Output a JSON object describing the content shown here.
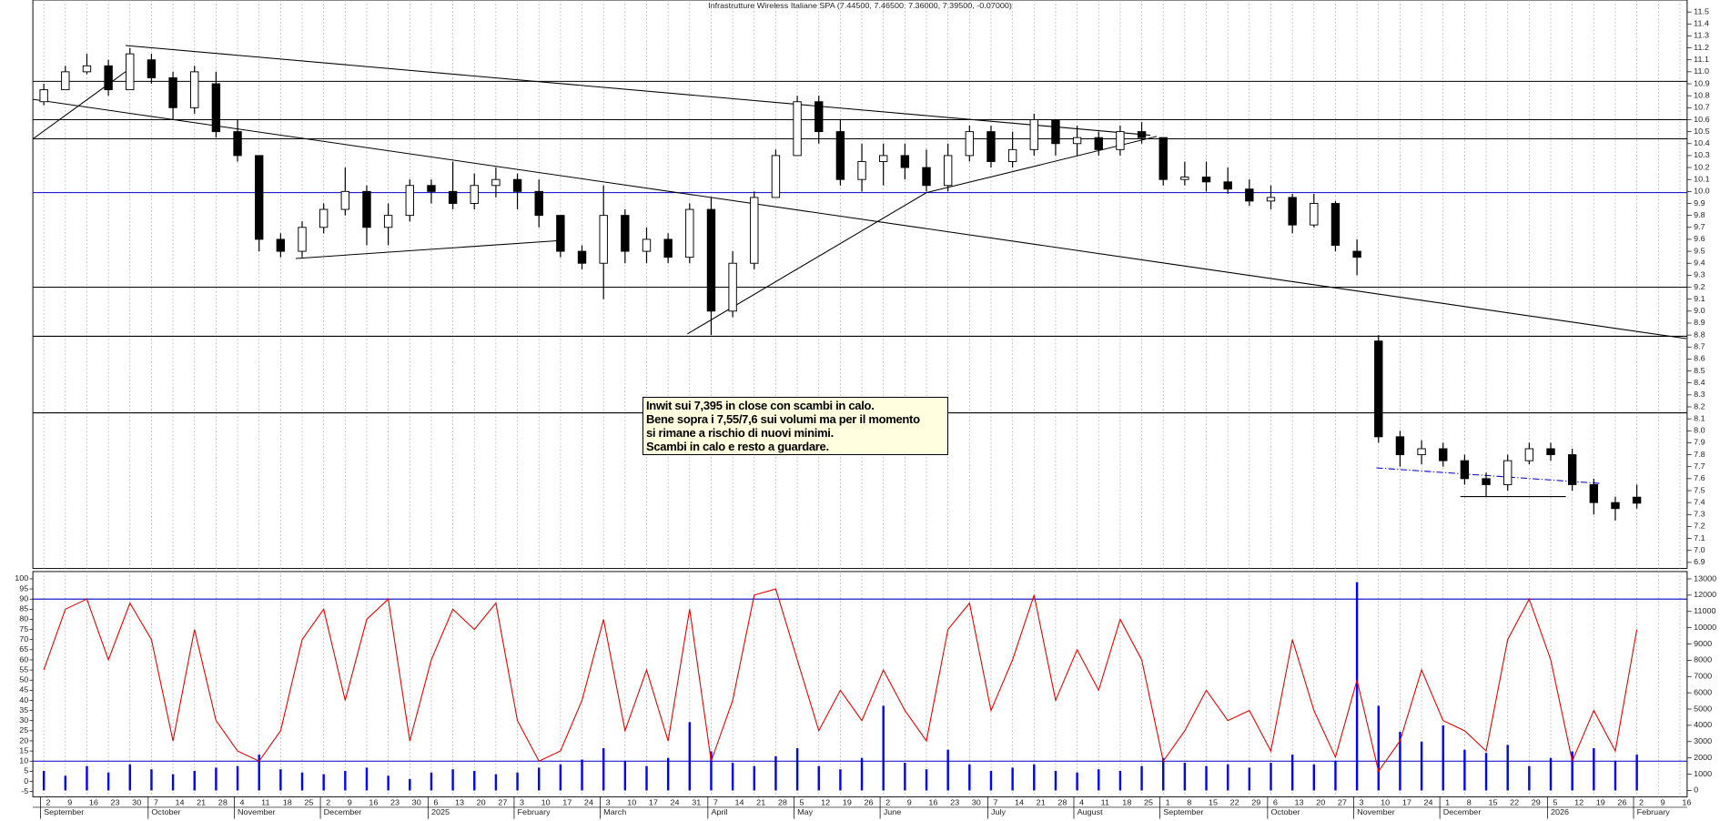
{
  "chart_data": {
    "type": "candlestick",
    "title": "Infrastrutture Wireless Italiane SPA (7.44500, 7.46500, 7.36000, 7.39500, -0.07000)",
    "annotation": [
      "Inwit sui 7,395 in close con scambi in calo.",
      "Bene sopra i 7,55/7,6 sui volumi ma per il momento",
      "si rimane a rischio di nuovi minimi.",
      "Scambi in calo e resto a guardare."
    ],
    "categories": [
      "2",
      "9",
      "16",
      "23",
      "30",
      "7",
      "14",
      "21",
      "28",
      "4",
      "11",
      "18",
      "25",
      "2",
      "9",
      "16",
      "23",
      "30",
      "6",
      "13",
      "20",
      "27",
      "3",
      "10",
      "17",
      "24",
      "3",
      "10",
      "17",
      "24",
      "31",
      "7",
      "14",
      "21",
      "28",
      "5",
      "12",
      "19",
      "26",
      "2",
      "9",
      "16",
      "23",
      "30",
      "7",
      "14",
      "21",
      "28",
      "4",
      "11",
      "18",
      "25",
      "1",
      "8",
      "15",
      "22",
      "29",
      "6",
      "13",
      "20",
      "27",
      "3",
      "10",
      "17",
      "24",
      "1",
      "8",
      "15",
      "22",
      "29",
      "5",
      "12",
      "19",
      "26",
      "2",
      "9",
      "16"
    ],
    "month_labels": [
      "September",
      null,
      null,
      null,
      null,
      "October",
      null,
      null,
      null,
      "November",
      null,
      null,
      null,
      "December",
      null,
      null,
      null,
      null,
      "2025",
      null,
      null,
      null,
      "February",
      null,
      null,
      null,
      "March",
      null,
      null,
      null,
      null,
      "April",
      null,
      null,
      null,
      "May",
      null,
      null,
      null,
      "June",
      null,
      null,
      null,
      null,
      "July",
      null,
      null,
      null,
      "August",
      null,
      null,
      null,
      "September",
      null,
      null,
      null,
      null,
      "October",
      null,
      null,
      null,
      "November",
      null,
      null,
      null,
      "December",
      null,
      null,
      null,
      null,
      "2026",
      null,
      null,
      null,
      "February",
      null,
      null
    ],
    "open": [
      10.75,
      10.85,
      11.0,
      11.05,
      10.85,
      11.1,
      10.95,
      10.7,
      10.9,
      10.5,
      10.3,
      9.6,
      9.5,
      9.7,
      9.85,
      10.0,
      9.7,
      9.8,
      10.05,
      10.0,
      9.9,
      10.05,
      10.1,
      10.0,
      9.8,
      9.5,
      9.4,
      9.8,
      9.5,
      9.6,
      9.45,
      9.85,
      9.0,
      9.4,
      9.95,
      10.3,
      10.75,
      10.5,
      10.1,
      10.25,
      10.3,
      10.2,
      10.05,
      10.3,
      10.5,
      10.25,
      10.35,
      10.6,
      10.4,
      10.45,
      10.35,
      10.5,
      10.45,
      10.1,
      10.12,
      10.08,
      10.02,
      9.92,
      9.95,
      9.72,
      9.9,
      9.5,
      8.75,
      7.95,
      7.8,
      7.85,
      7.75,
      7.6,
      7.55,
      7.75,
      7.85,
      7.8,
      7.55,
      7.4,
      7.445,
      null,
      null
    ],
    "high": [
      10.9,
      11.05,
      11.15,
      11.1,
      11.2,
      11.15,
      11.0,
      11.05,
      11.0,
      10.6,
      10.3,
      9.65,
      9.75,
      9.9,
      10.2,
      10.05,
      9.9,
      10.1,
      10.1,
      10.25,
      10.15,
      10.2,
      10.15,
      10.1,
      9.8,
      9.55,
      10.05,
      9.85,
      9.7,
      9.65,
      9.9,
      9.95,
      9.5,
      10.0,
      10.35,
      10.8,
      10.8,
      10.6,
      10.4,
      10.4,
      10.4,
      10.35,
      10.4,
      10.55,
      10.55,
      10.5,
      10.65,
      10.6,
      10.55,
      10.5,
      10.55,
      10.58,
      10.45,
      10.25,
      10.25,
      10.2,
      10.1,
      10.05,
      9.98,
      9.98,
      9.92,
      9.6,
      8.8,
      8.0,
      7.92,
      7.9,
      7.8,
      7.65,
      7.8,
      7.9,
      7.9,
      7.85,
      7.6,
      7.45,
      7.55,
      null,
      null
    ],
    "low": [
      10.72,
      10.85,
      10.98,
      10.8,
      10.85,
      10.9,
      10.6,
      10.65,
      10.45,
      10.25,
      9.5,
      9.45,
      9.45,
      9.65,
      9.8,
      9.55,
      9.55,
      9.75,
      9.9,
      9.85,
      9.85,
      9.95,
      9.85,
      9.7,
      9.45,
      9.35,
      9.1,
      9.4,
      9.4,
      9.4,
      9.4,
      8.8,
      8.95,
      9.35,
      9.95,
      10.3,
      10.4,
      10.05,
      10.0,
      10.05,
      10.1,
      10.0,
      10.0,
      10.25,
      10.2,
      10.2,
      10.3,
      10.3,
      10.3,
      10.3,
      10.3,
      10.4,
      10.05,
      10.05,
      10.0,
      9.98,
      9.88,
      9.85,
      9.65,
      9.7,
      9.5,
      9.3,
      7.9,
      7.7,
      7.72,
      7.7,
      7.55,
      7.45,
      7.5,
      7.72,
      7.75,
      7.5,
      7.3,
      7.25,
      7.35,
      null,
      null
    ],
    "close": [
      10.85,
      11.0,
      11.05,
      10.85,
      11.15,
      10.95,
      10.7,
      11.0,
      10.5,
      10.3,
      9.6,
      9.5,
      9.7,
      9.85,
      10.0,
      9.7,
      9.8,
      10.05,
      10.0,
      9.9,
      10.05,
      10.1,
      10.0,
      9.8,
      9.5,
      9.4,
      9.8,
      9.5,
      9.6,
      9.45,
      9.85,
      9.0,
      9.4,
      9.95,
      10.3,
      10.75,
      10.5,
      10.1,
      10.25,
      10.3,
      10.2,
      10.05,
      10.3,
      10.5,
      10.25,
      10.35,
      10.6,
      10.4,
      10.45,
      10.35,
      10.5,
      10.45,
      10.1,
      10.12,
      10.08,
      10.02,
      9.92,
      9.95,
      9.72,
      9.9,
      9.55,
      9.45,
      7.95,
      7.8,
      7.85,
      7.75,
      7.6,
      7.55,
      7.75,
      7.85,
      7.8,
      7.55,
      7.4,
      7.35,
      7.395,
      null,
      null
    ],
    "ylim": [
      6.85,
      11.6
    ],
    "yticks": [
      6.9,
      {
        "value": 7,
        "label": "7.0"
      },
      7.1,
      7.2,
      7.3,
      7.4,
      7.5,
      7.6,
      7.7,
      7.8,
      7.9,
      {
        "value": 8,
        "label": "8.0"
      },
      8.1,
      8.2,
      8.3,
      8.4,
      8.5,
      8.6,
      8.7,
      8.8,
      8.9,
      {
        "value": 9,
        "label": "9.0"
      },
      9.1,
      9.2,
      9.3,
      9.4,
      9.5,
      9.6,
      9.7,
      9.8,
      9.9,
      {
        "value": 10,
        "label": "10.0"
      },
      10.1,
      10.2,
      10.3,
      10.4,
      10.5,
      10.6,
      10.7,
      10.8,
      10.9,
      {
        "value": 11,
        "label": "11.0"
      },
      11.1,
      11.2,
      11.3,
      11.4,
      11.5
    ],
    "hlines": [
      {
        "value": 10.92,
        "color": "#000000"
      },
      {
        "value": 10.6,
        "color": "#000000"
      },
      {
        "value": 10.44,
        "color": "#000000"
      },
      {
        "value": 9.99,
        "color": "#0000cc"
      },
      {
        "value": 9.2,
        "color": "#000000"
      },
      {
        "value": 8.79,
        "color": "#000000"
      },
      {
        "value": 8.15,
        "color": "#000000"
      }
    ],
    "trendlines": [
      {
        "x": [
          -0.5,
          4.1
        ],
        "y": [
          10.44,
          11.04
        ],
        "color": "#000000"
      },
      {
        "x": [
          3.8,
          51.4
        ],
        "y": [
          11.22,
          10.47
        ],
        "color": "#000000"
      },
      {
        "x": [
          -0.5,
          76.3
        ],
        "y": [
          10.77,
          8.77
        ],
        "color": "#000000"
      },
      {
        "x": [
          11.7,
          24
        ],
        "y": [
          9.44,
          9.59
        ],
        "color": "#000000"
      },
      {
        "x": [
          29.9,
          41
        ],
        "y": [
          8.81,
          9.99
        ],
        "color": "#000000"
      },
      {
        "x": [
          41,
          51.7
        ],
        "y": [
          9.99,
          10.46
        ],
        "color": "#000000"
      },
      {
        "x": [
          61.9,
          72.3
        ],
        "y": [
          7.69,
          7.56
        ],
        "color": "#0000cc",
        "dashed": true
      },
      {
        "x": [
          65.8,
          70.7
        ],
        "y": [
          7.45,
          7.45
        ],
        "color": "#000000"
      }
    ],
    "grid": true,
    "oscillator": {
      "color": "#e00000",
      "values": [
        55,
        85,
        90,
        60,
        88,
        70,
        20,
        75,
        30,
        15,
        10,
        25,
        70,
        85,
        40,
        80,
        90,
        20,
        60,
        85,
        75,
        88,
        30,
        10,
        15,
        40,
        80,
        25,
        55,
        20,
        85,
        10,
        40,
        92,
        95,
        60,
        25,
        45,
        30,
        55,
        35,
        20,
        75,
        88,
        35,
        60,
        92,
        40,
        65,
        45,
        80,
        60,
        10,
        25,
        45,
        30,
        35,
        15,
        70,
        35,
        12,
        50,
        5,
        20,
        55,
        30,
        25,
        15,
        70,
        90,
        60,
        10,
        35,
        15,
        75,
        null,
        null
      ],
      "ylim": [
        -7.6,
        103.6
      ],
      "yticks": [
        100,
        95,
        90,
        85,
        80,
        75,
        70,
        65,
        60,
        55,
        50,
        45,
        40,
        35,
        30,
        25,
        20,
        15,
        10,
        5,
        0,
        -5
      ],
      "levels": [
        90,
        10
      ],
      "level_color": "#0000cc"
    },
    "volume": {
      "color": "#0000ff",
      "values": [
        1200,
        900,
        1500,
        1100,
        1600,
        1300,
        1000,
        1200,
        1400,
        1500,
        2200,
        1300,
        1100,
        1000,
        1200,
        1400,
        900,
        700,
        1100,
        1300,
        1200,
        1000,
        1100,
        1400,
        1600,
        1900,
        2600,
        1800,
        1500,
        2000,
        4200,
        2400,
        1700,
        1500,
        2100,
        2600,
        1500,
        1300,
        2000,
        5200,
        1700,
        1300,
        2500,
        1600,
        1200,
        1400,
        1600,
        1200,
        1100,
        1300,
        1200,
        1500,
        2000,
        1700,
        1500,
        1600,
        1400,
        1700,
        2200,
        1600,
        1800,
        12800,
        5200,
        3600,
        3000,
        4000,
        2500,
        2300,
        2800,
        1500,
        2000,
        2400,
        2600,
        1800,
        2200,
        null,
        null
      ],
      "ylim": [
        -390,
        13450
      ],
      "yticks": [
        0,
        1000,
        2000,
        3000,
        4000,
        5000,
        6000,
        7000,
        8000,
        9000,
        10000,
        11000,
        12000,
        13000
      ]
    }
  }
}
